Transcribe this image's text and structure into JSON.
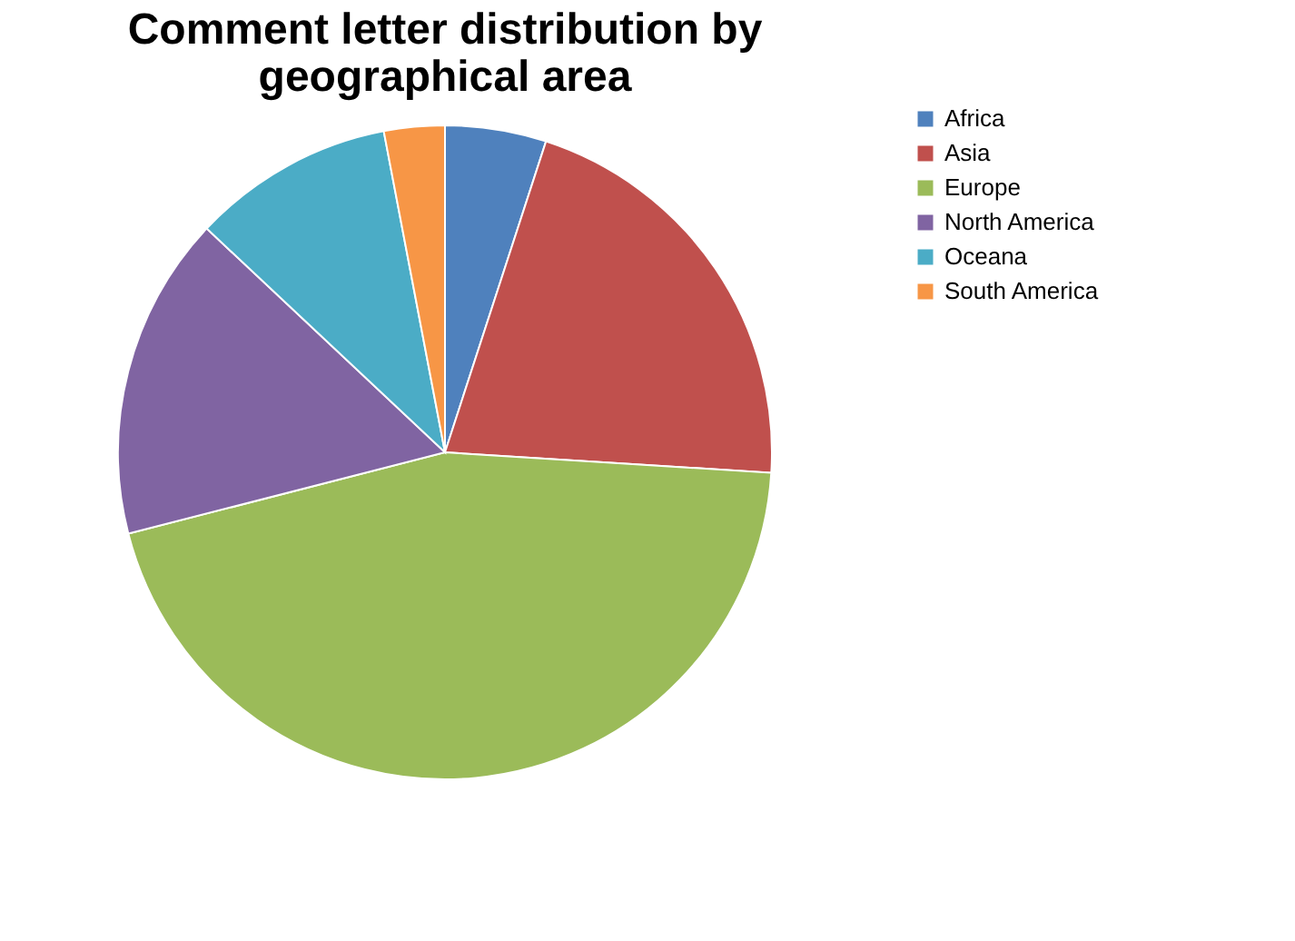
{
  "chart_data": {
    "type": "pie",
    "title": [
      "Comment letter distribution by",
      "geographical area"
    ],
    "categories": [
      "Africa",
      "Asia",
      "Europe",
      "North America",
      "Oceana",
      "South America"
    ],
    "values": [
      5,
      21,
      45,
      16,
      10,
      3
    ],
    "colors": [
      "#4f81bd",
      "#c0504d",
      "#9bbb59",
      "#8064a2",
      "#4bacc6",
      "#f79646"
    ],
    "legend": "right"
  }
}
